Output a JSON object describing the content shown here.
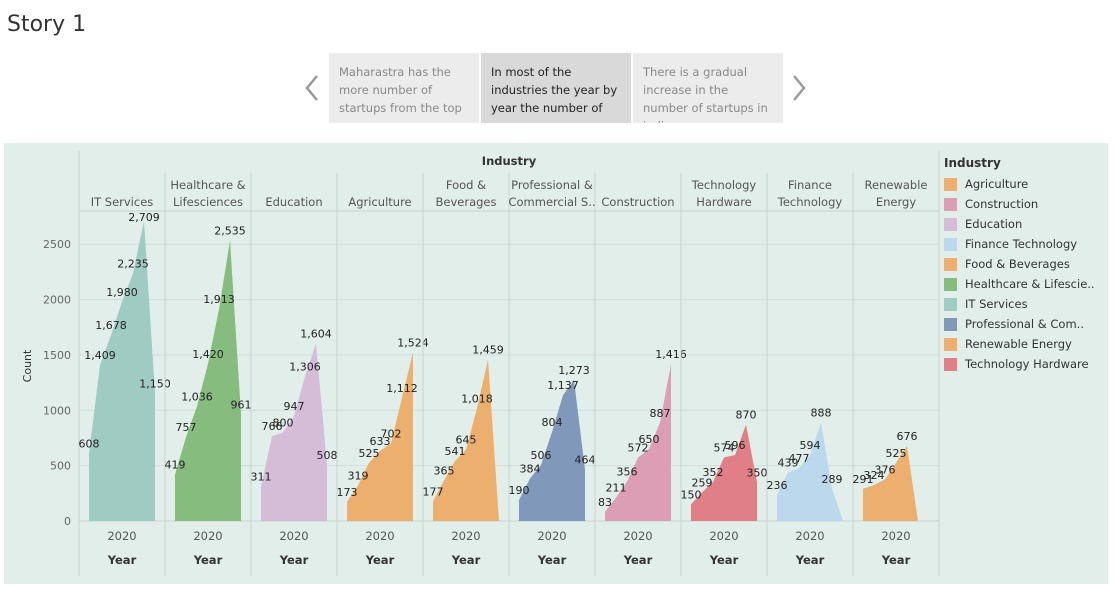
{
  "story": {
    "title": "Story 1",
    "points": [
      "Maharastra has the more number of startups from the top",
      "In most of the industries the year by year the number of",
      "There is a gradual increase in the number of startups in india"
    ],
    "active_index": 1
  },
  "icons": {
    "prev": "chevron-left-icon",
    "next": "chevron-right-icon"
  },
  "chart_data": {
    "type": "area",
    "header": "Industry",
    "ylabel": "Count",
    "ylim": [
      0,
      2800
    ],
    "yticks": [
      0,
      500,
      1000,
      1500,
      2000,
      2500
    ],
    "ytick_labels": [
      "0",
      "500",
      "1000",
      "1500",
      "2000",
      "2500"
    ],
    "grid": true,
    "legend_position": "right",
    "x_tick_label": "2020",
    "x_axis_label": "Year",
    "panels": [
      {
        "header": [
          "IT Services"
        ],
        "color": "#a0cbc2",
        "values": [
          608,
          1409,
          1678,
          1980,
          2235,
          2709,
          1150
        ],
        "labels": [
          "608",
          "1,409",
          "1,678",
          "1,980",
          "2,235",
          "2,709",
          "1,150"
        ]
      },
      {
        "header": [
          "Healthcare &",
          "Lifesciences"
        ],
        "color": "#86bc7e",
        "values": [
          419,
          757,
          1036,
          1420,
          1913,
          2535,
          961
        ],
        "labels": [
          "419",
          "757",
          "1,036",
          "1,420",
          "1,913",
          "2,535",
          "961"
        ]
      },
      {
        "header": [
          "Education"
        ],
        "color": "#d5bdd8",
        "values": [
          311,
          766,
          800,
          947,
          1306,
          1604,
          508
        ],
        "labels": [
          "311",
          "766",
          "800",
          "947",
          "1,306",
          "1,604",
          "508"
        ]
      },
      {
        "header": [
          "Agriculture"
        ],
        "color": "#ecaf6e",
        "values": [
          173,
          319,
          525,
          633,
          702,
          1112,
          1524
        ],
        "labels": [
          "173",
          "319",
          "525",
          "633",
          "702",
          "1,112",
          "1,524"
        ]
      },
      {
        "header": [
          "Food &",
          "Beverages"
        ],
        "color": "#ecaf6e",
        "values": [
          177,
          365,
          541,
          645,
          1018,
          1459,
          0
        ],
        "labels": [
          "177",
          "365",
          "541",
          "645",
          "1,018",
          "1,459",
          ""
        ]
      },
      {
        "header": [
          "Professional &",
          "Commercial S.."
        ],
        "color": "#8099ba",
        "values": [
          190,
          384,
          506,
          804,
          1137,
          1273,
          464
        ],
        "labels": [
          "190",
          "384",
          "506",
          "804",
          "1,137",
          "1,273",
          "464"
        ]
      },
      {
        "header": [
          "Construction"
        ],
        "color": "#dc9eb4",
        "values": [
          83,
          211,
          356,
          572,
          650,
          887,
          1416
        ],
        "labels": [
          "83",
          "211",
          "356",
          "572",
          "650",
          "887",
          "1,416"
        ]
      },
      {
        "header": [
          "Technology",
          "Hardware"
        ],
        "color": "#e07f85",
        "values": [
          150,
          259,
          352,
          574,
          596,
          870,
          350
        ],
        "labels": [
          "150",
          "259",
          "352",
          "574",
          "596",
          "870",
          "350"
        ]
      },
      {
        "header": [
          "Finance",
          "Technology"
        ],
        "color": "#bbd8ec",
        "values": [
          236,
          439,
          477,
          594,
          888,
          289,
          0
        ],
        "labels": [
          "236",
          "439",
          "477",
          "594",
          "888",
          "289",
          ""
        ]
      },
      {
        "header": [
          "Renewable",
          "Energy"
        ],
        "color": "#ecaf6e",
        "values": [
          291,
          324,
          376,
          525,
          676,
          0,
          0
        ],
        "labels": [
          "291",
          "324",
          "376",
          "525",
          "676",
          "",
          ""
        ]
      }
    ],
    "legend": {
      "title": "Industry",
      "items": [
        {
          "label": "Agriculture",
          "color": "#ecaf6e"
        },
        {
          "label": "Construction",
          "color": "#dc9eb4"
        },
        {
          "label": "Education",
          "color": "#d5bdd8"
        },
        {
          "label": "Finance Technology",
          "color": "#bbd8ec"
        },
        {
          "label": "Food & Beverages",
          "color": "#ecaf6e"
        },
        {
          "label": "Healthcare & Lifescie..",
          "color": "#86bc7e"
        },
        {
          "label": "IT Services",
          "color": "#a0cbc2"
        },
        {
          "label": "Professional & Com..",
          "color": "#8099ba"
        },
        {
          "label": "Renewable Energy",
          "color": "#ecaf6e"
        },
        {
          "label": "Technology Hardware",
          "color": "#e07f85"
        }
      ]
    }
  }
}
